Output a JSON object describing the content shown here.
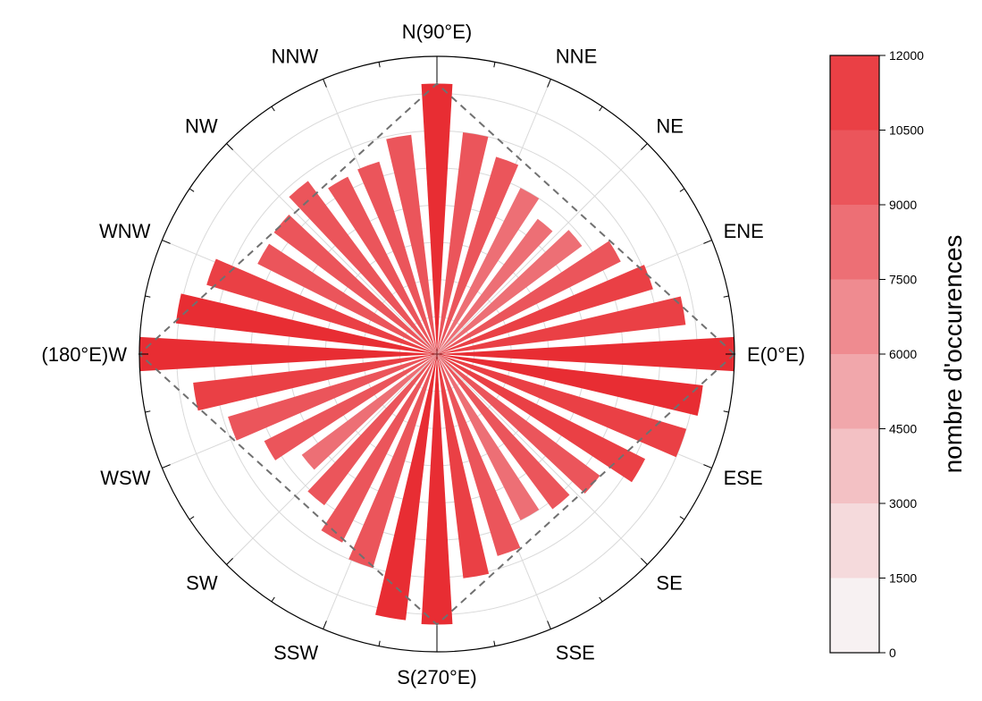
{
  "chart_data": {
    "type": "polar-bar",
    "title": "",
    "direction_labels": [
      {
        "label": "E(0°E)",
        "angle": 0
      },
      {
        "label": "ENE",
        "angle": 22.5
      },
      {
        "label": "NE",
        "angle": 45
      },
      {
        "label": "NNE",
        "angle": 67.5
      },
      {
        "label": "N(90°E)",
        "angle": 90
      },
      {
        "label": "NNW",
        "angle": 112.5
      },
      {
        "label": "NW",
        "angle": 135
      },
      {
        "label": "WNW",
        "angle": 157.5
      },
      {
        "label": "(180°E)W",
        "angle": 180
      },
      {
        "label": "WSW",
        "angle": 202.5
      },
      {
        "label": "SW",
        "angle": 225
      },
      {
        "label": "SSW",
        "angle": 247.5
      },
      {
        "label": "S(270°E)",
        "angle": 270
      },
      {
        "label": "SSE",
        "angle": 292.5
      },
      {
        "label": "SE",
        "angle": 315
      },
      {
        "label": "ESE",
        "angle": 337.5
      }
    ],
    "bin_width_deg": 10,
    "angles_deg": [
      0,
      10,
      20,
      30,
      40,
      50,
      60,
      70,
      80,
      90,
      100,
      110,
      120,
      130,
      140,
      150,
      160,
      170,
      180,
      190,
      200,
      210,
      220,
      230,
      240,
      250,
      260,
      270,
      280,
      290,
      300,
      310,
      320,
      330,
      340,
      350
    ],
    "values": [
      12000,
      10100,
      9100,
      8300,
      7300,
      6800,
      7500,
      8300,
      9000,
      10900,
      8900,
      8100,
      8000,
      8700,
      8200,
      8100,
      9700,
      10600,
      12000,
      9900,
      8800,
      7800,
      6800,
      7600,
      8500,
      9000,
      10800,
      10900,
      9100,
      8500,
      7500,
      7800,
      8200,
      9400,
      10500,
      10800
    ],
    "rlim": [
      0,
      12000
    ],
    "grid": true,
    "envelope": "dashed polygon connecting E, N, W and S bar tips",
    "colorbar": {
      "title": "nombre d'occurences",
      "ticks": [
        "0",
        "1500",
        "3000",
        "4500",
        "6000",
        "7500",
        "9000",
        "10500",
        "12000"
      ],
      "levels": [
        0,
        1500,
        3000,
        4500,
        6000,
        7500,
        9000,
        10500,
        12000
      ],
      "colors": [
        "#f7f1f2",
        "#f5dadc",
        "#f3c1c4",
        "#f1a7ab",
        "#ef8b90",
        "#ed6f75",
        "#eb555b",
        "#ea4045",
        "#e82d33"
      ]
    }
  }
}
